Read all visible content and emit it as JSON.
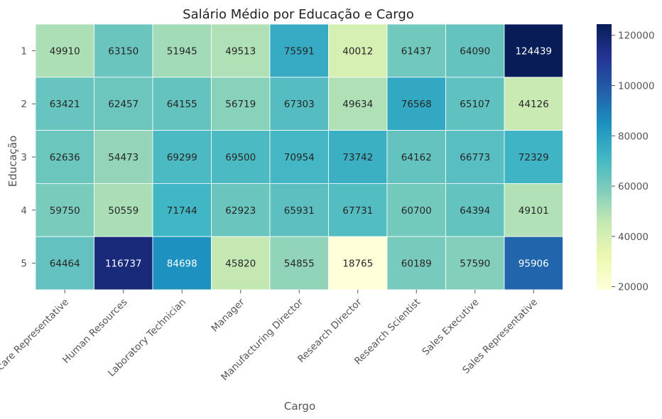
{
  "chart_data": {
    "type": "heatmap",
    "title": "Salário Médio por Educação e Cargo",
    "xlabel": "Cargo",
    "ylabel": "Educação",
    "x_categories": [
      "Healthcare Representative",
      "Human Resources",
      "Laboratory Technician",
      "Manager",
      "Manufacturing Director",
      "Research Director",
      "Research Scientist",
      "Sales Executive",
      "Sales Representative"
    ],
    "y_categories": [
      "1",
      "2",
      "3",
      "4",
      "5"
    ],
    "values": [
      [
        49910,
        63150,
        51945,
        49513,
        75591,
        40012,
        61437,
        64090,
        124439
      ],
      [
        63421,
        62457,
        64155,
        56719,
        67303,
        49634,
        76568,
        65107,
        44126
      ],
      [
        62636,
        54473,
        69299,
        69500,
        70954,
        73742,
        64162,
        66773,
        72329
      ],
      [
        59750,
        50559,
        71744,
        62923,
        65931,
        67731,
        60700,
        64394,
        49101
      ],
      [
        64464,
        116737,
        84698,
        45820,
        54855,
        18765,
        60189,
        57590,
        95906
      ]
    ],
    "colorbar": {
      "colormap": "YlGnBu",
      "range": [
        18765,
        124439
      ],
      "ticks": [
        20000,
        40000,
        60000,
        80000,
        100000,
        120000
      ]
    },
    "annotations": true,
    "grid": false
  }
}
